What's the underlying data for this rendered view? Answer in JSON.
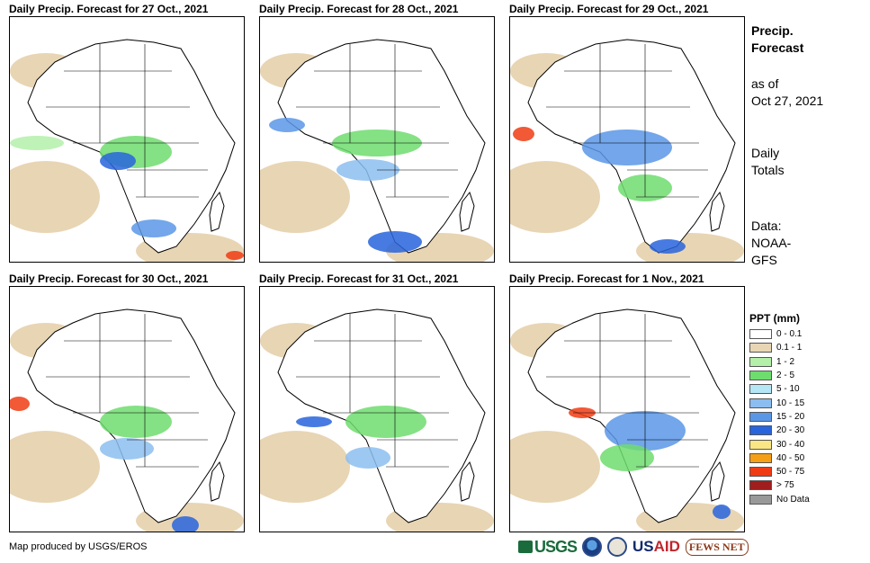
{
  "panels": [
    {
      "title": "Daily Precip. Forecast for 27 Oct., 2021"
    },
    {
      "title": "Daily Precip. Forecast for 28 Oct., 2021"
    },
    {
      "title": "Daily Precip. Forecast for 29 Oct., 2021"
    },
    {
      "title": "Daily Precip. Forecast for 30 Oct., 2021"
    },
    {
      "title": "Daily Precip. Forecast for 31 Oct., 2021"
    },
    {
      "title": "Daily Precip. Forecast for 1 Nov., 2021"
    }
  ],
  "sidebar": {
    "title_line1": "Precip.",
    "title_line2": "Forecast",
    "asof_line1": "as of",
    "asof_line2": "Oct 27, 2021",
    "totals_line1": "Daily",
    "totals_line2": "Totals",
    "data_line1": "Data:",
    "data_line2": "NOAA-",
    "data_line3": "GFS"
  },
  "legend": {
    "title": "PPT (mm)",
    "items": [
      {
        "label": "0 - 0.1",
        "color": "#ffffff"
      },
      {
        "label": "0.1 - 1",
        "color": "#e8d5b4"
      },
      {
        "label": "1 - 2",
        "color": "#b4f0aa"
      },
      {
        "label": "2 - 5",
        "color": "#6edc6e"
      },
      {
        "label": "5 - 10",
        "color": "#b4e6f5"
      },
      {
        "label": "10 - 15",
        "color": "#8cbef0"
      },
      {
        "label": "15 - 20",
        "color": "#5a96e6"
      },
      {
        "label": "20 - 30",
        "color": "#2864dc"
      },
      {
        "label": "30 - 40",
        "color": "#fae682"
      },
      {
        "label": "40 - 50",
        "color": "#f5a014"
      },
      {
        "label": "50 - 75",
        "color": "#f03c14"
      },
      {
        "label": "> 75",
        "color": "#a01e1e"
      },
      {
        "label": "No Data",
        "color": "#999999"
      }
    ]
  },
  "credit": "Map produced by USGS/EROS",
  "logos": {
    "usgs": "USGS",
    "usaid_a": "US",
    "usaid_b": "AID",
    "fews": "FEWS NET"
  }
}
